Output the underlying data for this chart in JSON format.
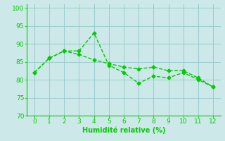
{
  "series1": [
    82,
    86,
    88,
    88,
    93,
    84,
    82,
    79,
    81,
    80.5,
    82,
    80,
    78
  ],
  "series2": [
    82,
    86,
    88,
    87,
    85.5,
    84.5,
    83.5,
    83,
    83.5,
    82.5,
    82.5,
    80.5,
    78
  ],
  "x": [
    0,
    1,
    2,
    3,
    4,
    5,
    6,
    7,
    8,
    9,
    10,
    11,
    12
  ],
  "xlim": [
    -0.5,
    12.5
  ],
  "ylim": [
    70,
    101
  ],
  "yticks": [
    70,
    75,
    80,
    85,
    90,
    95,
    100
  ],
  "xticks": [
    0,
    1,
    2,
    3,
    4,
    5,
    6,
    7,
    8,
    9,
    10,
    11,
    12
  ],
  "xlabel": "Humidité relative (%)",
  "line_color": "#00cc00",
  "bg_color": "#cce8e8",
  "grid_color": "#99cccc",
  "marker": "D",
  "markersize": 2.5,
  "linewidth": 1.0,
  "xlabel_fontsize": 7,
  "tick_fontsize": 6.5
}
